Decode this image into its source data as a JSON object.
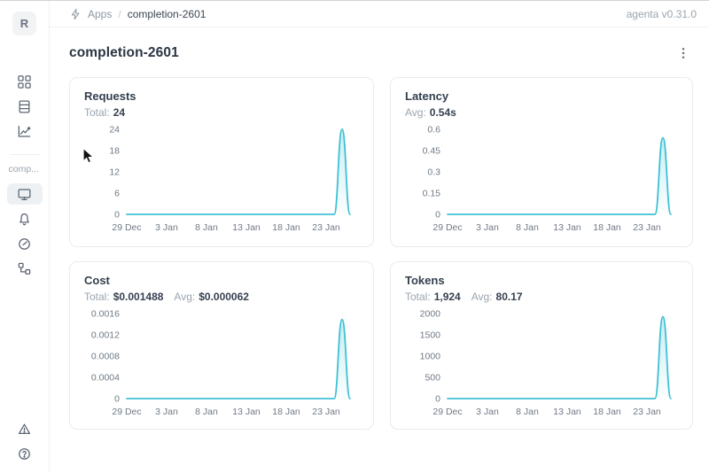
{
  "colors": {
    "accent": "#3ec1d5",
    "accent_fill_top_opacity": 0.28
  },
  "topbar": {
    "breadcrumb": {
      "app_section": "Apps",
      "separator": "/",
      "current": "completion-2601"
    },
    "version": "agenta v0.31.0"
  },
  "sidebar": {
    "workspace_initial": "R",
    "section_label": "comp...",
    "nav_icons_top": [
      "apps-grid-icon",
      "test-sets-table-icon",
      "observability-chart-icon"
    ],
    "nav_icons_app": [
      "overview-monitor-icon",
      "evaluations-bell-icon",
      "playground-gauge-icon",
      "traces-tree-icon"
    ],
    "nav_icons_bottom": [
      "alert-triangle-icon",
      "help-circle-icon"
    ],
    "selected_item": "overview-monitor-icon"
  },
  "page": {
    "title": "completion-2601"
  },
  "chart_data": [
    {
      "type": "area",
      "title": "Requests",
      "stats": [
        {
          "label": "Total:",
          "value": "24"
        }
      ],
      "y_ticks": [
        24,
        18,
        12,
        6,
        0
      ],
      "y_max": 24,
      "x_ticks": [
        "29 Dec",
        "3 Jan",
        "8 Jan",
        "13 Jan",
        "18 Jan",
        "23 Jan"
      ],
      "x_tick_days": [
        0,
        5,
        10,
        15,
        20,
        25
      ],
      "x_range_days": 28,
      "points": [
        [
          0,
          0
        ],
        [
          26,
          0
        ],
        [
          27,
          24
        ],
        [
          28,
          0
        ]
      ],
      "grid": false,
      "legend": false
    },
    {
      "type": "area",
      "title": "Latency",
      "stats": [
        {
          "label": "Avg:",
          "value": "0.54s"
        }
      ],
      "y_ticks": [
        0.6,
        0.45,
        0.3,
        0.15,
        0
      ],
      "y_max": 0.6,
      "x_ticks": [
        "29 Dec",
        "3 Jan",
        "8 Jan",
        "13 Jan",
        "18 Jan",
        "23 Jan"
      ],
      "x_tick_days": [
        0,
        5,
        10,
        15,
        20,
        25
      ],
      "x_range_days": 28,
      "points": [
        [
          0,
          0
        ],
        [
          26,
          0
        ],
        [
          27,
          0.54
        ],
        [
          28,
          0
        ]
      ],
      "grid": false,
      "legend": false
    },
    {
      "type": "area",
      "title": "Cost",
      "stats": [
        {
          "label": "Total:",
          "value": "$0.001488"
        },
        {
          "label": "Avg:",
          "value": "$0.000062"
        }
      ],
      "y_ticks": [
        0.0016,
        0.0012,
        0.0008,
        0.0004,
        0
      ],
      "y_max": 0.0016,
      "x_ticks": [
        "29 Dec",
        "3 Jan",
        "8 Jan",
        "13 Jan",
        "18 Jan",
        "23 Jan"
      ],
      "x_tick_days": [
        0,
        5,
        10,
        15,
        20,
        25
      ],
      "x_range_days": 28,
      "points": [
        [
          0,
          0
        ],
        [
          26,
          0
        ],
        [
          27,
          0.001488
        ],
        [
          28,
          0
        ]
      ],
      "grid": false,
      "legend": false
    },
    {
      "type": "area",
      "title": "Tokens",
      "stats": [
        {
          "label": "Total:",
          "value": "1,924"
        },
        {
          "label": "Avg:",
          "value": "80.17"
        }
      ],
      "y_ticks": [
        2000,
        1500,
        1000,
        500,
        0
      ],
      "y_max": 2000,
      "x_ticks": [
        "29 Dec",
        "3 Jan",
        "8 Jan",
        "13 Jan",
        "18 Jan",
        "23 Jan"
      ],
      "x_tick_days": [
        0,
        5,
        10,
        15,
        20,
        25
      ],
      "x_range_days": 28,
      "points": [
        [
          0,
          0
        ],
        [
          26,
          0
        ],
        [
          27,
          1924
        ],
        [
          28,
          0
        ]
      ],
      "grid": false,
      "legend": false
    }
  ]
}
